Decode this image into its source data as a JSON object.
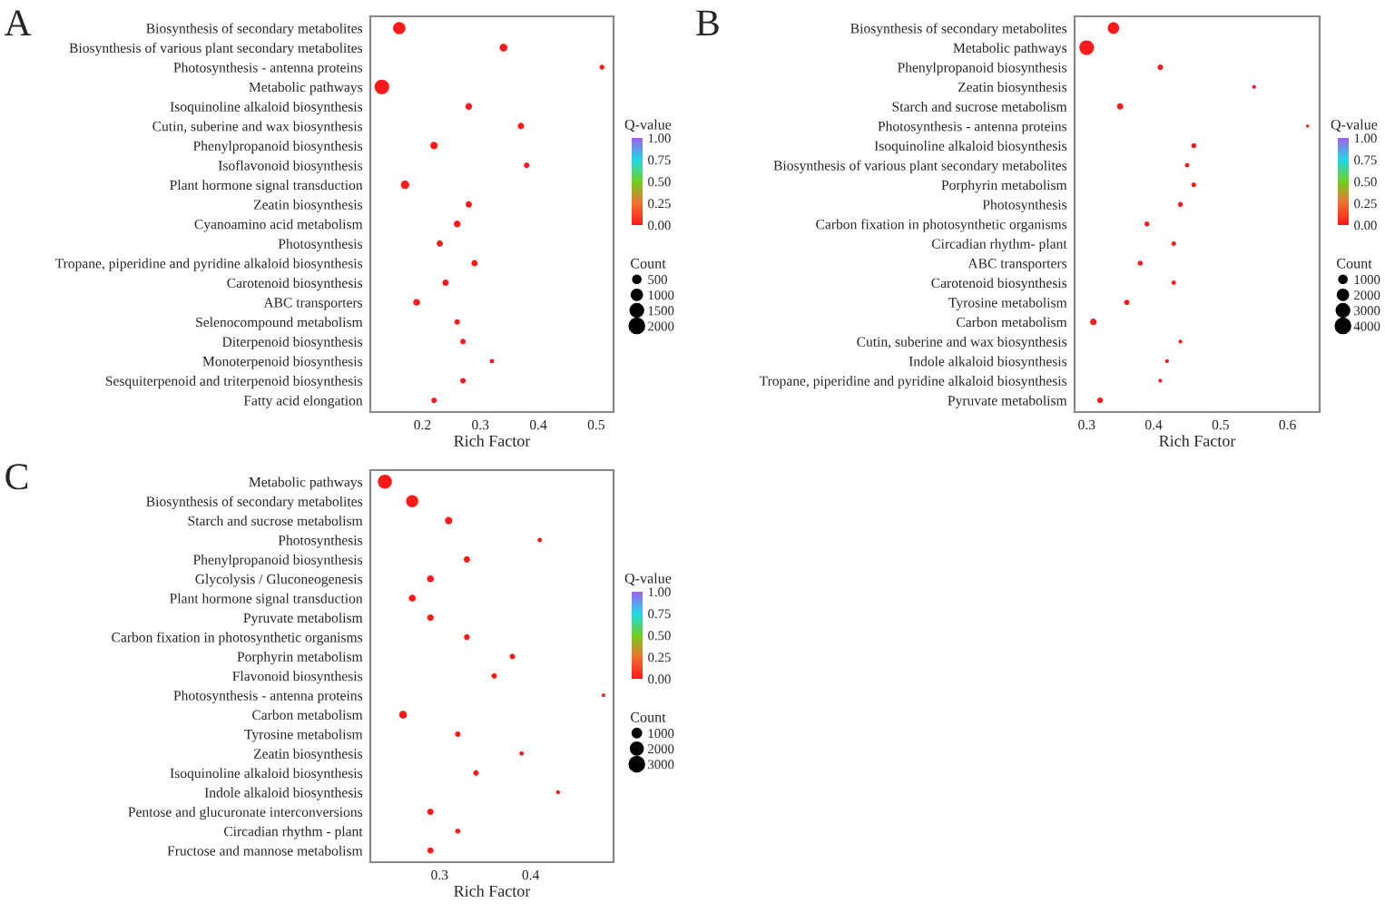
{
  "chart_data": [
    {
      "type": "bubble",
      "title": "A",
      "orientation": "horizontal",
      "xlabel": "Rich Factor",
      "clabel": "Q-value",
      "legend_title": "Count",
      "categories": [
        "Biosynthesis of secondary metabolites",
        "Biosynthesis of various plant secondary metabolites",
        "Photosynthesis - antenna proteins",
        "Metabolic pathways",
        "Isoquinoline alkaloid biosynthesis",
        "Cutin, suberine and wax biosynthesis",
        "Phenylpropanoid biosynthesis",
        "Isoflavonoid biosynthesis",
        "Plant hormone signal transduction",
        "Zeatin biosynthesis",
        "Cyanoamino acid metabolism",
        "Photosynthesis",
        "Tropane, piperidine and pyridine alkaloid biosynthesis",
        "Carotenoid biosynthesis",
        "ABC transporters",
        "Selenocompound metabolism",
        "Diterpenoid biosynthesis",
        "Monoterpenoid biosynthesis",
        "Sesquiterpenoid and triterpenoid biosynthesis",
        "Fatty acid elongation"
      ],
      "values": [
        0.16,
        0.34,
        0.51,
        0.13,
        0.28,
        0.37,
        0.22,
        0.38,
        0.17,
        0.28,
        0.26,
        0.23,
        0.29,
        0.24,
        0.19,
        0.26,
        0.27,
        0.32,
        0.27,
        0.22
      ],
      "sizes": [
        1500,
        600,
        250,
        2100,
        450,
        400,
        550,
        300,
        700,
        400,
        450,
        400,
        400,
        400,
        450,
        300,
        300,
        200,
        300,
        300
      ],
      "cvalues": [
        0,
        0,
        0,
        0,
        0,
        0,
        0,
        0,
        0,
        0,
        0,
        0,
        0,
        0,
        0,
        0,
        0,
        0,
        0,
        0
      ],
      "size_legend": [
        500,
        1000,
        1500,
        2000
      ],
      "clim": [
        0,
        1
      ],
      "cticks": [
        {
          "value": 0,
          "label": "0.00"
        },
        {
          "value": 0.25,
          "label": "0.25"
        },
        {
          "value": 0.5,
          "label": "0.50"
        },
        {
          "value": 0.75,
          "label": "0.75"
        },
        {
          "value": 1,
          "label": "1.00"
        }
      ],
      "xlim": [
        0.11,
        0.53
      ],
      "xticks": [
        0.2,
        0.3,
        0.4,
        0.5
      ]
    },
    {
      "type": "bubble",
      "title": "B",
      "orientation": "horizontal",
      "xlabel": "Rich Factor",
      "clabel": "Q-value",
      "legend_title": "Count",
      "categories": [
        "Biosynthesis of secondary metabolites",
        "Metabolic pathways",
        "Phenylpropanoid biosynthesis",
        "Zeatin biosynthesis",
        "Starch and sucrose metabolism",
        "Photosynthesis - antenna proteins",
        "Isoquinoline alkaloid biosynthesis",
        "Biosynthesis of various plant secondary metabolites",
        "Porphyrin metabolism",
        "Photosynthesis",
        "Carbon fixation in photosynthetic organisms",
        "Circadian rhythm- plant",
        "ABC transporters",
        "Carotenoid biosynthesis",
        "Tyrosine metabolism",
        "Carbon metabolism",
        "Cutin, suberine and wax biosynthesis",
        "Indole alkaloid biosynthesis",
        "Tropane, piperidine and pyridine alkaloid biosynthesis",
        "Pyruvate metabolism"
      ],
      "values": [
        0.34,
        0.3,
        0.41,
        0.55,
        0.35,
        0.63,
        0.46,
        0.45,
        0.46,
        0.44,
        0.39,
        0.43,
        0.38,
        0.43,
        0.36,
        0.31,
        0.44,
        0.42,
        0.41,
        0.32
      ],
      "sizes": [
        2600,
        4200,
        600,
        300,
        800,
        200,
        500,
        400,
        450,
        500,
        500,
        400,
        500,
        400,
        550,
        850,
        300,
        300,
        300,
        650
      ],
      "cvalues": [
        0,
        0,
        0,
        0,
        0,
        0,
        0,
        0,
        0,
        0,
        0,
        0,
        0,
        0,
        0,
        0,
        0,
        0,
        0,
        0
      ],
      "size_legend": [
        1000,
        2000,
        3000,
        4000
      ],
      "clim": [
        0,
        1
      ],
      "cticks": [
        {
          "value": 0,
          "label": "0.00"
        },
        {
          "value": 0.25,
          "label": "0.25"
        },
        {
          "value": 0.5,
          "label": "0.50"
        },
        {
          "value": 0.75,
          "label": "0.75"
        },
        {
          "value": 1,
          "label": "1.00"
        }
      ],
      "xlim": [
        0.282,
        0.648
      ],
      "xticks": [
        0.3,
        0.4,
        0.5,
        0.6
      ]
    },
    {
      "type": "bubble",
      "title": "C",
      "orientation": "horizontal",
      "xlabel": "Rich Factor",
      "clabel": "Q-value",
      "legend_title": "Count",
      "categories": [
        "Metabolic pathways",
        "Biosynthesis of secondary metabolites",
        "Starch and sucrose metabolism",
        "Photosynthesis",
        "Phenylpropanoid biosynthesis",
        "Glycolysis / Gluconeogenesis",
        "Plant hormone signal transduction",
        "Pyruvate metabolism",
        "Carbon fixation in photosynthetic organisms",
        "Porphyrin metabolism",
        "Flavonoid biosynthesis",
        "Photosynthesis - antenna proteins",
        "Carbon metabolism",
        "Tyrosine metabolism",
        "Zeatin biosynthesis",
        "Isoquinoline alkaloid biosynthesis",
        "Indole alkaloid biosynthesis",
        "Pentose and glucuronate interconversions",
        "Circadian rhythm - plant",
        "Fructose and mannose metabolism"
      ],
      "values": [
        0.24,
        0.27,
        0.31,
        0.41,
        0.33,
        0.29,
        0.27,
        0.29,
        0.33,
        0.38,
        0.36,
        0.48,
        0.26,
        0.32,
        0.39,
        0.34,
        0.43,
        0.29,
        0.32,
        0.29
      ],
      "sizes": [
        2900,
        2200,
        800,
        300,
        600,
        700,
        700,
        650,
        500,
        450,
        450,
        200,
        900,
        450,
        300,
        450,
        250,
        600,
        400,
        550
      ],
      "cvalues": [
        0,
        0,
        0,
        0,
        0,
        0,
        0,
        0,
        0,
        0,
        0,
        0,
        0,
        0,
        0,
        0,
        0,
        0,
        0,
        0
      ],
      "size_legend": [
        1000,
        2000,
        3000
      ],
      "clim": [
        0,
        1
      ],
      "cticks": [
        {
          "value": 0,
          "label": "0.00"
        },
        {
          "value": 0.25,
          "label": "0.25"
        },
        {
          "value": 0.5,
          "label": "0.50"
        },
        {
          "value": 0.75,
          "label": "0.75"
        },
        {
          "value": 1,
          "label": "1.00"
        }
      ],
      "xlim": [
        0.224,
        0.491
      ],
      "xticks": [
        0.3,
        0.4
      ]
    }
  ]
}
